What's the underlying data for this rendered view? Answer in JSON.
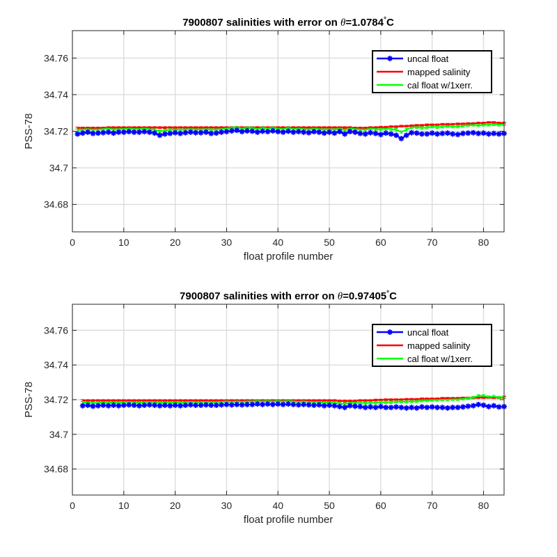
{
  "chart_data": [
    {
      "type": "line",
      "title_prefix": "7900807 salinities with error on ",
      "title_theta": "θ",
      "title_value": "=1.0784",
      "title_deg": "°",
      "title_unit": "C",
      "xlabel": "float profile number",
      "ylabel": "PSS-78",
      "xlim": [
        0,
        84
      ],
      "ylim": [
        34.665,
        34.775
      ],
      "xticks": [
        0,
        10,
        20,
        30,
        40,
        50,
        60,
        70,
        80
      ],
      "yticks": [
        34.68,
        34.7,
        34.72,
        34.74,
        34.76
      ],
      "yticklabels": [
        "34.68",
        "34.7",
        "34.72",
        "34.74",
        "34.76"
      ],
      "grid": true,
      "legend_position": "top-right",
      "legend": [
        "uncal float",
        "mapped salinity",
        "cal float w/1xerr."
      ],
      "colors": {
        "uncal": "#0000ff",
        "mapped": "#ff0000",
        "cal": "#00ff00"
      },
      "x": [
        1,
        2,
        3,
        4,
        5,
        6,
        7,
        8,
        9,
        10,
        11,
        12,
        13,
        14,
        15,
        16,
        17,
        18,
        19,
        20,
        21,
        22,
        23,
        24,
        25,
        26,
        27,
        28,
        29,
        30,
        31,
        32,
        33,
        34,
        35,
        36,
        37,
        38,
        39,
        40,
        41,
        42,
        43,
        44,
        45,
        46,
        47,
        48,
        49,
        50,
        51,
        52,
        53,
        54,
        55,
        56,
        57,
        58,
        59,
        60,
        61,
        62,
        63,
        64,
        65,
        66,
        67,
        68,
        69,
        70,
        71,
        72,
        73,
        74,
        75,
        76,
        77,
        78,
        79,
        80,
        81,
        82,
        83,
        84
      ],
      "series": [
        {
          "name": "uncal float",
          "values": [
            34.7185,
            34.719,
            34.7195,
            34.7188,
            34.719,
            34.7192,
            34.7195,
            34.719,
            34.7195,
            34.7195,
            34.7198,
            34.7195,
            34.7195,
            34.7198,
            34.7195,
            34.719,
            34.7178,
            34.7185,
            34.7188,
            34.7192,
            34.7188,
            34.7192,
            34.7195,
            34.7192,
            34.7192,
            34.7195,
            34.7188,
            34.719,
            34.7195,
            34.7198,
            34.7202,
            34.7205,
            34.7198,
            34.7202,
            34.72,
            34.7195,
            34.72,
            34.7198,
            34.7202,
            34.7198,
            34.7195,
            34.72,
            34.7195,
            34.7198,
            34.7195,
            34.7192,
            34.7198,
            34.7195,
            34.719,
            34.7195,
            34.719,
            34.7198,
            34.7185,
            34.7198,
            34.7195,
            34.7188,
            34.7185,
            34.7192,
            34.7188,
            34.7182,
            34.719,
            34.7185,
            34.7178,
            34.716,
            34.7178,
            34.7192,
            34.719,
            34.7185,
            34.7185,
            34.719,
            34.7185,
            34.7188,
            34.719,
            34.7185,
            34.7182,
            34.7188,
            34.719,
            34.7192,
            34.7188,
            34.719,
            34.7185,
            34.7188,
            34.7185,
            34.7188
          ]
        },
        {
          "name": "mapped salinity",
          "values": [
            34.7218,
            34.7218,
            34.7218,
            34.7218,
            34.7218,
            34.7218,
            34.722,
            34.722,
            34.722,
            34.722,
            34.722,
            34.722,
            34.722,
            34.722,
            34.722,
            34.722,
            34.722,
            34.722,
            34.722,
            34.722,
            34.722,
            34.722,
            34.722,
            34.722,
            34.722,
            34.722,
            34.722,
            34.722,
            34.722,
            34.722,
            34.722,
            34.722,
            34.722,
            34.722,
            34.722,
            34.722,
            34.722,
            34.722,
            34.722,
            34.722,
            34.722,
            34.722,
            34.722,
            34.722,
            34.722,
            34.722,
            34.722,
            34.722,
            34.722,
            34.722,
            34.722,
            34.722,
            34.722,
            34.722,
            34.7218,
            34.7218,
            34.7218,
            34.722,
            34.722,
            34.7222,
            34.7222,
            34.7225,
            34.7225,
            34.7228,
            34.7228,
            34.723,
            34.7232,
            34.7232,
            34.7235,
            34.7235,
            34.7235,
            34.7238,
            34.7238,
            34.7238,
            34.724,
            34.724,
            34.7242,
            34.7242,
            34.7245,
            34.7245,
            34.7248,
            34.7248,
            34.7245,
            34.7245
          ]
        },
        {
          "name": "cal float w/1xerr.",
          "values": [
            34.7205,
            34.721,
            34.7212,
            34.7208,
            34.721,
            34.7212,
            34.7215,
            34.721,
            34.7212,
            34.7212,
            34.7215,
            34.7212,
            34.7212,
            34.7215,
            34.7212,
            34.7208,
            34.72,
            34.7205,
            34.7208,
            34.721,
            34.7208,
            34.721,
            34.7212,
            34.721,
            34.721,
            34.7212,
            34.7208,
            34.721,
            34.7212,
            34.7215,
            34.7218,
            34.722,
            34.7215,
            34.7218,
            34.7218,
            34.7212,
            34.7218,
            34.7215,
            34.7218,
            34.7215,
            34.7212,
            34.7218,
            34.7212,
            34.7215,
            34.7212,
            34.721,
            34.7215,
            34.7212,
            34.7208,
            34.7212,
            34.7208,
            34.7215,
            34.7205,
            34.7215,
            34.7212,
            34.721,
            34.7208,
            34.7215,
            34.7212,
            34.721,
            34.7215,
            34.7212,
            34.7208,
            34.7195,
            34.7208,
            34.7222,
            34.7222,
            34.7218,
            34.722,
            34.7225,
            34.7222,
            34.7225,
            34.7228,
            34.7225,
            34.7225,
            34.723,
            34.7232,
            34.7235,
            34.7232,
            34.7235,
            34.7235,
            34.7238,
            34.7235,
            34.7238
          ]
        }
      ]
    },
    {
      "type": "line",
      "title_prefix": "7900807 salinities with error on ",
      "title_theta": "θ",
      "title_value": "=0.97405",
      "title_deg": "°",
      "title_unit": "C",
      "xlabel": "float profile number",
      "ylabel": "PSS-78",
      "xlim": [
        0,
        84
      ],
      "ylim": [
        34.665,
        34.775
      ],
      "xticks": [
        0,
        10,
        20,
        30,
        40,
        50,
        60,
        70,
        80
      ],
      "yticks": [
        34.68,
        34.7,
        34.72,
        34.74,
        34.76
      ],
      "yticklabels": [
        "34.68",
        "34.7",
        "34.72",
        "34.74",
        "34.76"
      ],
      "grid": true,
      "legend_position": "top-right",
      "legend": [
        "uncal float",
        "mapped salinity",
        "cal float w/1xerr."
      ],
      "colors": {
        "uncal": "#0000ff",
        "mapped": "#ff0000",
        "cal": "#00ff00"
      },
      "x": [
        2,
        3,
        4,
        5,
        6,
        7,
        8,
        9,
        10,
        11,
        12,
        13,
        14,
        15,
        16,
        17,
        18,
        19,
        20,
        21,
        22,
        23,
        24,
        25,
        26,
        27,
        28,
        29,
        30,
        31,
        32,
        33,
        34,
        35,
        36,
        37,
        38,
        39,
        40,
        41,
        42,
        43,
        44,
        45,
        46,
        47,
        48,
        49,
        50,
        51,
        52,
        53,
        54,
        55,
        56,
        57,
        58,
        59,
        60,
        61,
        62,
        63,
        64,
        65,
        66,
        67,
        68,
        69,
        70,
        71,
        72,
        73,
        74,
        75,
        76,
        77,
        78,
        79,
        80,
        81,
        82,
        83,
        84
      ],
      "series": [
        {
          "name": "uncal float",
          "values": [
            34.7165,
            34.7168,
            34.7162,
            34.7165,
            34.7168,
            34.7165,
            34.7168,
            34.7165,
            34.7168,
            34.717,
            34.7168,
            34.7165,
            34.7168,
            34.717,
            34.7168,
            34.7165,
            34.7168,
            34.7165,
            34.7168,
            34.7165,
            34.7168,
            34.717,
            34.7168,
            34.7168,
            34.717,
            34.7168,
            34.7168,
            34.717,
            34.7172,
            34.717,
            34.7172,
            34.717,
            34.7172,
            34.7172,
            34.7175,
            34.7172,
            34.7175,
            34.7172,
            34.7175,
            34.7172,
            34.7175,
            34.7172,
            34.717,
            34.7172,
            34.717,
            34.7168,
            34.717,
            34.7165,
            34.7168,
            34.7165,
            34.716,
            34.7155,
            34.7165,
            34.7162,
            34.716,
            34.7155,
            34.7158,
            34.7155,
            34.716,
            34.7155,
            34.7155,
            34.7158,
            34.7155,
            34.7152,
            34.7155,
            34.7152,
            34.7158,
            34.7155,
            34.7158,
            34.7155,
            34.7155,
            34.7152,
            34.7155,
            34.7155,
            34.7158,
            34.7162,
            34.7165,
            34.7172,
            34.7168,
            34.716,
            34.7165,
            34.7158,
            34.716
          ]
        },
        {
          "name": "mapped salinity",
          "values": [
            34.7195,
            34.7195,
            34.7195,
            34.7195,
            34.7195,
            34.7195,
            34.7195,
            34.7195,
            34.7195,
            34.7195,
            34.7195,
            34.7195,
            34.7195,
            34.7195,
            34.7195,
            34.7195,
            34.7195,
            34.7195,
            34.7195,
            34.7195,
            34.7195,
            34.7195,
            34.7195,
            34.7195,
            34.7195,
            34.7195,
            34.7195,
            34.7195,
            34.7195,
            34.7195,
            34.7195,
            34.7195,
            34.7195,
            34.7195,
            34.7195,
            34.7195,
            34.7195,
            34.7195,
            34.7195,
            34.7195,
            34.7195,
            34.7195,
            34.7195,
            34.7195,
            34.7195,
            34.7195,
            34.7195,
            34.7195,
            34.7195,
            34.7195,
            34.7192,
            34.7192,
            34.7192,
            34.7192,
            34.7195,
            34.7195,
            34.7195,
            34.7198,
            34.7198,
            34.72,
            34.72,
            34.72,
            34.72,
            34.7202,
            34.7202,
            34.7202,
            34.7205,
            34.7205,
            34.7205,
            34.7205,
            34.7208,
            34.7208,
            34.7208,
            34.7208,
            34.721,
            34.721,
            34.721,
            34.7212,
            34.7212,
            34.7212,
            34.7212,
            34.7212,
            34.7212
          ]
        },
        {
          "name": "cal float w/1xerr.",
          "values": [
            34.7182,
            34.7185,
            34.718,
            34.7182,
            34.7185,
            34.7182,
            34.7185,
            34.7182,
            34.7185,
            34.7188,
            34.7185,
            34.7182,
            34.7185,
            34.7188,
            34.7185,
            34.7182,
            34.7185,
            34.7182,
            34.7185,
            34.7182,
            34.7185,
            34.7188,
            34.7185,
            34.7185,
            34.7188,
            34.7185,
            34.7185,
            34.7188,
            34.719,
            34.7188,
            34.719,
            34.7188,
            34.719,
            34.719,
            34.7192,
            34.719,
            34.7192,
            34.719,
            34.7192,
            34.719,
            34.7192,
            34.719,
            34.7188,
            34.719,
            34.7188,
            34.7185,
            34.7188,
            34.7182,
            34.7185,
            34.7182,
            34.7178,
            34.7175,
            34.7182,
            34.718,
            34.7182,
            34.718,
            34.7182,
            34.7182,
            34.7185,
            34.7185,
            34.7185,
            34.7188,
            34.7188,
            34.7188,
            34.719,
            34.719,
            34.7195,
            34.7195,
            34.7198,
            34.7198,
            34.72,
            34.72,
            34.7202,
            34.7202,
            34.7205,
            34.7208,
            34.7212,
            34.7222,
            34.7222,
            34.7215,
            34.7218,
            34.7212,
            34.7215
          ]
        }
      ]
    }
  ]
}
